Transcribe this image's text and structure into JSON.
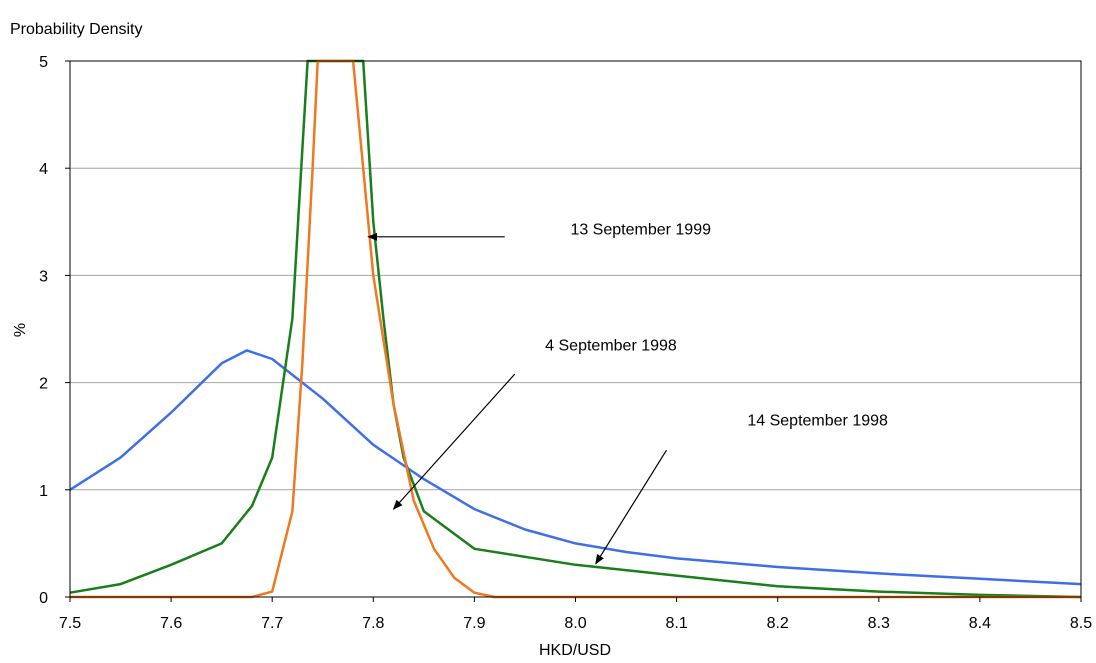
{
  "chart_data": {
    "type": "line",
    "title": "",
    "ylabel_top": "Probability Density",
    "ylabel": "%",
    "xlabel": "HKD/USD",
    "xlim": [
      7.5,
      8.5
    ],
    "ylim": [
      0,
      5
    ],
    "x_ticks": [
      "7.5",
      "7.6",
      "7.7",
      "7.8",
      "7.9",
      "8.0",
      "8.1",
      "8.2",
      "8.3",
      "8.4",
      "8.5"
    ],
    "y_ticks": [
      "0",
      "1",
      "2",
      "3",
      "4",
      "5"
    ],
    "grid": "horizontal",
    "legend": "none",
    "series": [
      {
        "name": "4 September 1998",
        "color": "#3F6FE8",
        "points": [
          [
            7.5,
            1.0
          ],
          [
            7.55,
            1.3
          ],
          [
            7.6,
            1.72
          ],
          [
            7.65,
            2.18
          ],
          [
            7.675,
            2.3
          ],
          [
            7.7,
            2.22
          ],
          [
            7.75,
            1.85
          ],
          [
            7.8,
            1.42
          ],
          [
            7.85,
            1.1
          ],
          [
            7.9,
            0.82
          ],
          [
            7.95,
            0.63
          ],
          [
            8.0,
            0.5
          ],
          [
            8.05,
            0.42
          ],
          [
            8.1,
            0.36
          ],
          [
            8.2,
            0.28
          ],
          [
            8.3,
            0.22
          ],
          [
            8.4,
            0.17
          ],
          [
            8.5,
            0.12
          ]
        ]
      },
      {
        "name": "14 September 1998",
        "color": "#1A7F1A",
        "points": [
          [
            7.5,
            0.04
          ],
          [
            7.55,
            0.12
          ],
          [
            7.6,
            0.3
          ],
          [
            7.65,
            0.5
          ],
          [
            7.68,
            0.85
          ],
          [
            7.7,
            1.3
          ],
          [
            7.72,
            2.6
          ],
          [
            7.73,
            4.2
          ],
          [
            7.735,
            5.0
          ],
          [
            7.79,
            5.0
          ],
          [
            7.8,
            3.5
          ],
          [
            7.81,
            2.6
          ],
          [
            7.82,
            1.8
          ],
          [
            7.83,
            1.3
          ],
          [
            7.85,
            0.8
          ],
          [
            7.9,
            0.45
          ],
          [
            8.0,
            0.3
          ],
          [
            8.1,
            0.2
          ],
          [
            8.2,
            0.1
          ],
          [
            8.3,
            0.05
          ],
          [
            8.4,
            0.02
          ],
          [
            8.5,
            0.0
          ]
        ]
      },
      {
        "name": "13 September 1999",
        "color": "#F07820",
        "points": [
          [
            7.5,
            0.0
          ],
          [
            7.68,
            0.0
          ],
          [
            7.7,
            0.05
          ],
          [
            7.72,
            0.8
          ],
          [
            7.73,
            2.2
          ],
          [
            7.74,
            4.0
          ],
          [
            7.745,
            5.0
          ],
          [
            7.78,
            5.0
          ],
          [
            7.8,
            3.0
          ],
          [
            7.82,
            1.8
          ],
          [
            7.84,
            0.9
          ],
          [
            7.86,
            0.45
          ],
          [
            7.88,
            0.18
          ],
          [
            7.9,
            0.04
          ],
          [
            7.92,
            0.0
          ],
          [
            8.5,
            0.0
          ]
        ]
      }
    ],
    "annotations": [
      {
        "text": "13 September 1999",
        "label_x": 7.995,
        "label_y": 3.38,
        "arrow_from": [
          7.93,
          3.36
        ],
        "arrow_to": [
          7.795,
          3.36
        ]
      },
      {
        "text": "4 September 1998",
        "label_x": 7.97,
        "label_y": 2.3,
        "arrow_from": [
          7.94,
          2.08
        ],
        "arrow_to": [
          7.82,
          0.82
        ]
      },
      {
        "text": "14 September 1998",
        "label_x": 8.17,
        "label_y": 1.6,
        "arrow_from": [
          8.09,
          1.37
        ],
        "arrow_to": [
          8.02,
          0.31
        ]
      }
    ]
  }
}
